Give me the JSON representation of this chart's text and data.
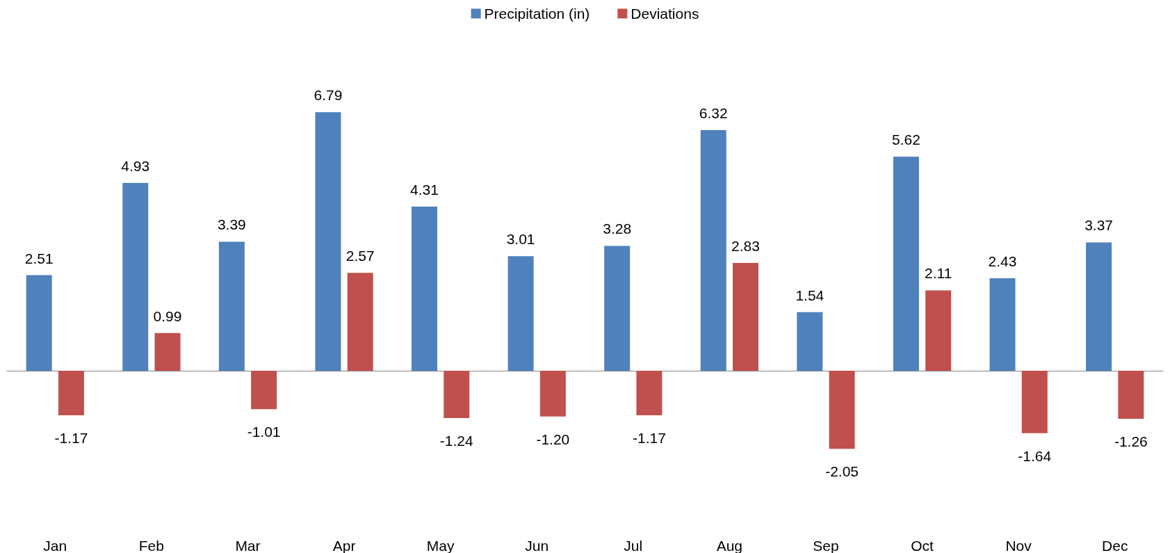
{
  "chart_data": {
    "type": "bar",
    "categories": [
      "Jan",
      "Feb",
      "Mar",
      "Apr",
      "May",
      "Jun",
      "Jul",
      "Aug",
      "Sep",
      "Oct",
      "Nov",
      "Dec"
    ],
    "series": [
      {
        "name": "Precipitation (in)",
        "color": "#4f81bd",
        "values": [
          2.51,
          4.93,
          3.39,
          6.79,
          4.31,
          3.01,
          3.28,
          6.32,
          1.54,
          5.62,
          2.43,
          3.37
        ],
        "value_labels": [
          "2.51",
          "4.93",
          "3.39",
          "6.79",
          "4.31",
          "3.01",
          "3.28",
          "6.32",
          "1.54",
          "5.62",
          "2.43",
          "3.37"
        ]
      },
      {
        "name": "Deviations",
        "color": "#c0504d",
        "values": [
          -1.17,
          0.99,
          -1.01,
          2.57,
          -1.24,
          -1.2,
          -1.17,
          2.83,
          -2.05,
          2.11,
          -1.64,
          -1.26
        ],
        "value_labels": [
          "-1.17",
          "0.99",
          "-1.01",
          "2.57",
          "-1.24",
          "-1.20",
          "-1.17",
          "2.83",
          "-2.05",
          "2.11",
          "-1.64",
          "-1.26"
        ]
      }
    ],
    "legend": "top",
    "grid": false
  }
}
